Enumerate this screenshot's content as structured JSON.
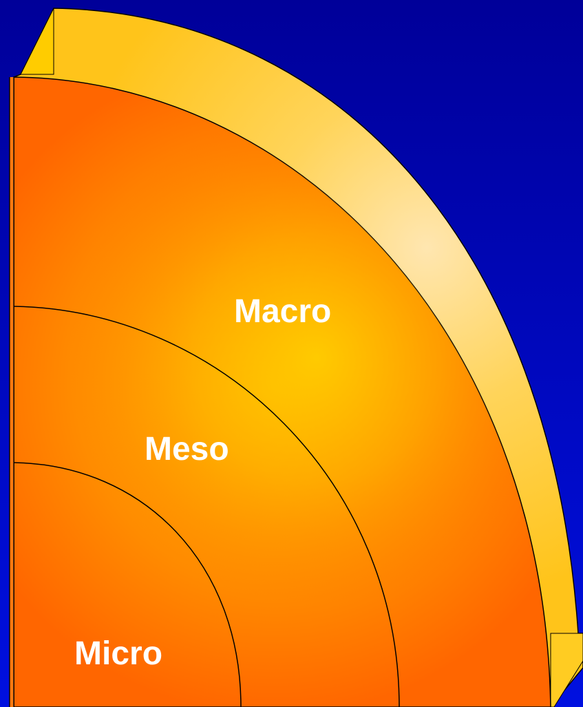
{
  "diagram": {
    "labels": {
      "macro": "Macro",
      "meso": "Meso",
      "micro": "Micro"
    },
    "colors": {
      "background_top": "#000099",
      "background_bottom": "#0010e0",
      "outer_band": "#ffcc33",
      "outer_band_highlight": "#ffdd99",
      "ring_edge": "#ff6600",
      "ring_center": "#ffcc00",
      "outline": "#000000"
    }
  }
}
